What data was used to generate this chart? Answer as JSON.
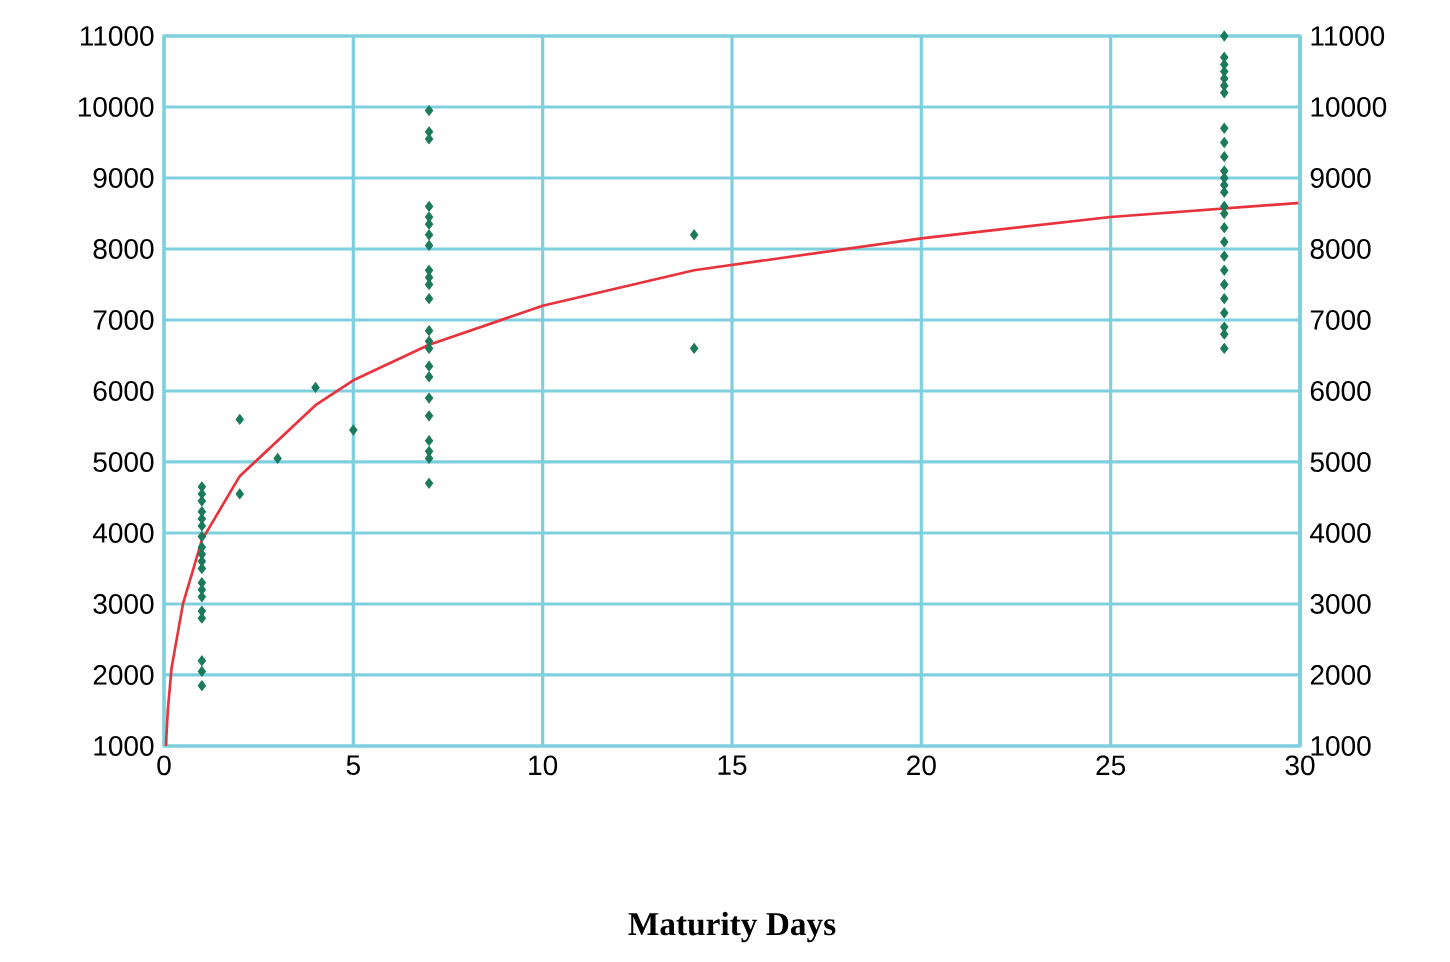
{
  "chart_data": {
    "type": "scatter",
    "xlabel": "Maturity Days",
    "xlim": [
      0,
      30
    ],
    "xticks": [
      0,
      5,
      10,
      15,
      20,
      25,
      30
    ],
    "ylim": [
      1000,
      11000
    ],
    "yticks": [
      1000,
      2000,
      3000,
      4000,
      5000,
      6000,
      7000,
      8000,
      9000,
      10000,
      11000
    ],
    "y2lim": [
      1000,
      11000
    ],
    "y2ticks": [
      1000,
      2000,
      3000,
      4000,
      5000,
      6000,
      7000,
      8000,
      9000,
      10000,
      11000
    ],
    "grid": true,
    "series": [
      {
        "marker": "diamond",
        "color": "#1a7a5a",
        "x": [
          1,
          1,
          1,
          1,
          1,
          1,
          1,
          1,
          1,
          1,
          1,
          1,
          1,
          1,
          1,
          1,
          1,
          1,
          1,
          2,
          2,
          3,
          4,
          5,
          7,
          7,
          7,
          7,
          7,
          7,
          7,
          7,
          7,
          7,
          7,
          7,
          7,
          7,
          7,
          7,
          7,
          7,
          7,
          7,
          7,
          7,
          7,
          14,
          14,
          28,
          28,
          28,
          28,
          28,
          28,
          28,
          28,
          28,
          28,
          28,
          28,
          28,
          28,
          28,
          28,
          28,
          28,
          28,
          28,
          28,
          28,
          28,
          28,
          28,
          28
        ],
        "values": [
          4650,
          4550,
          4450,
          4300,
          4200,
          4100,
          3950,
          3800,
          3700,
          3600,
          3500,
          3300,
          3200,
          3100,
          2900,
          2800,
          2200,
          2050,
          1850,
          5600,
          4550,
          5050,
          6050,
          5450,
          9950,
          9650,
          9550,
          8600,
          8450,
          8350,
          8200,
          8050,
          7700,
          7600,
          7500,
          7300,
          6850,
          6700,
          6600,
          6350,
          6200,
          5900,
          5650,
          5300,
          5150,
          5050,
          4700,
          8200,
          6600,
          11000,
          10700,
          10600,
          10500,
          10400,
          10300,
          10200,
          9700,
          9500,
          9300,
          9100,
          9000,
          8900,
          8800,
          8600,
          8500,
          8300,
          8100,
          7900,
          7700,
          7500,
          7300,
          7100,
          6900,
          6800,
          6600
        ]
      },
      {
        "type": "line",
        "color": "#e8323c",
        "x": [
          0.05,
          0.1,
          0.2,
          0.5,
          1,
          2,
          3,
          4,
          5,
          7,
          10,
          14,
          20,
          25,
          30
        ],
        "values": [
          1000,
          1500,
          2100,
          3000,
          3900,
          4800,
          5300,
          5800,
          6150,
          6650,
          7200,
          7700,
          8150,
          8450,
          8650
        ]
      }
    ]
  }
}
